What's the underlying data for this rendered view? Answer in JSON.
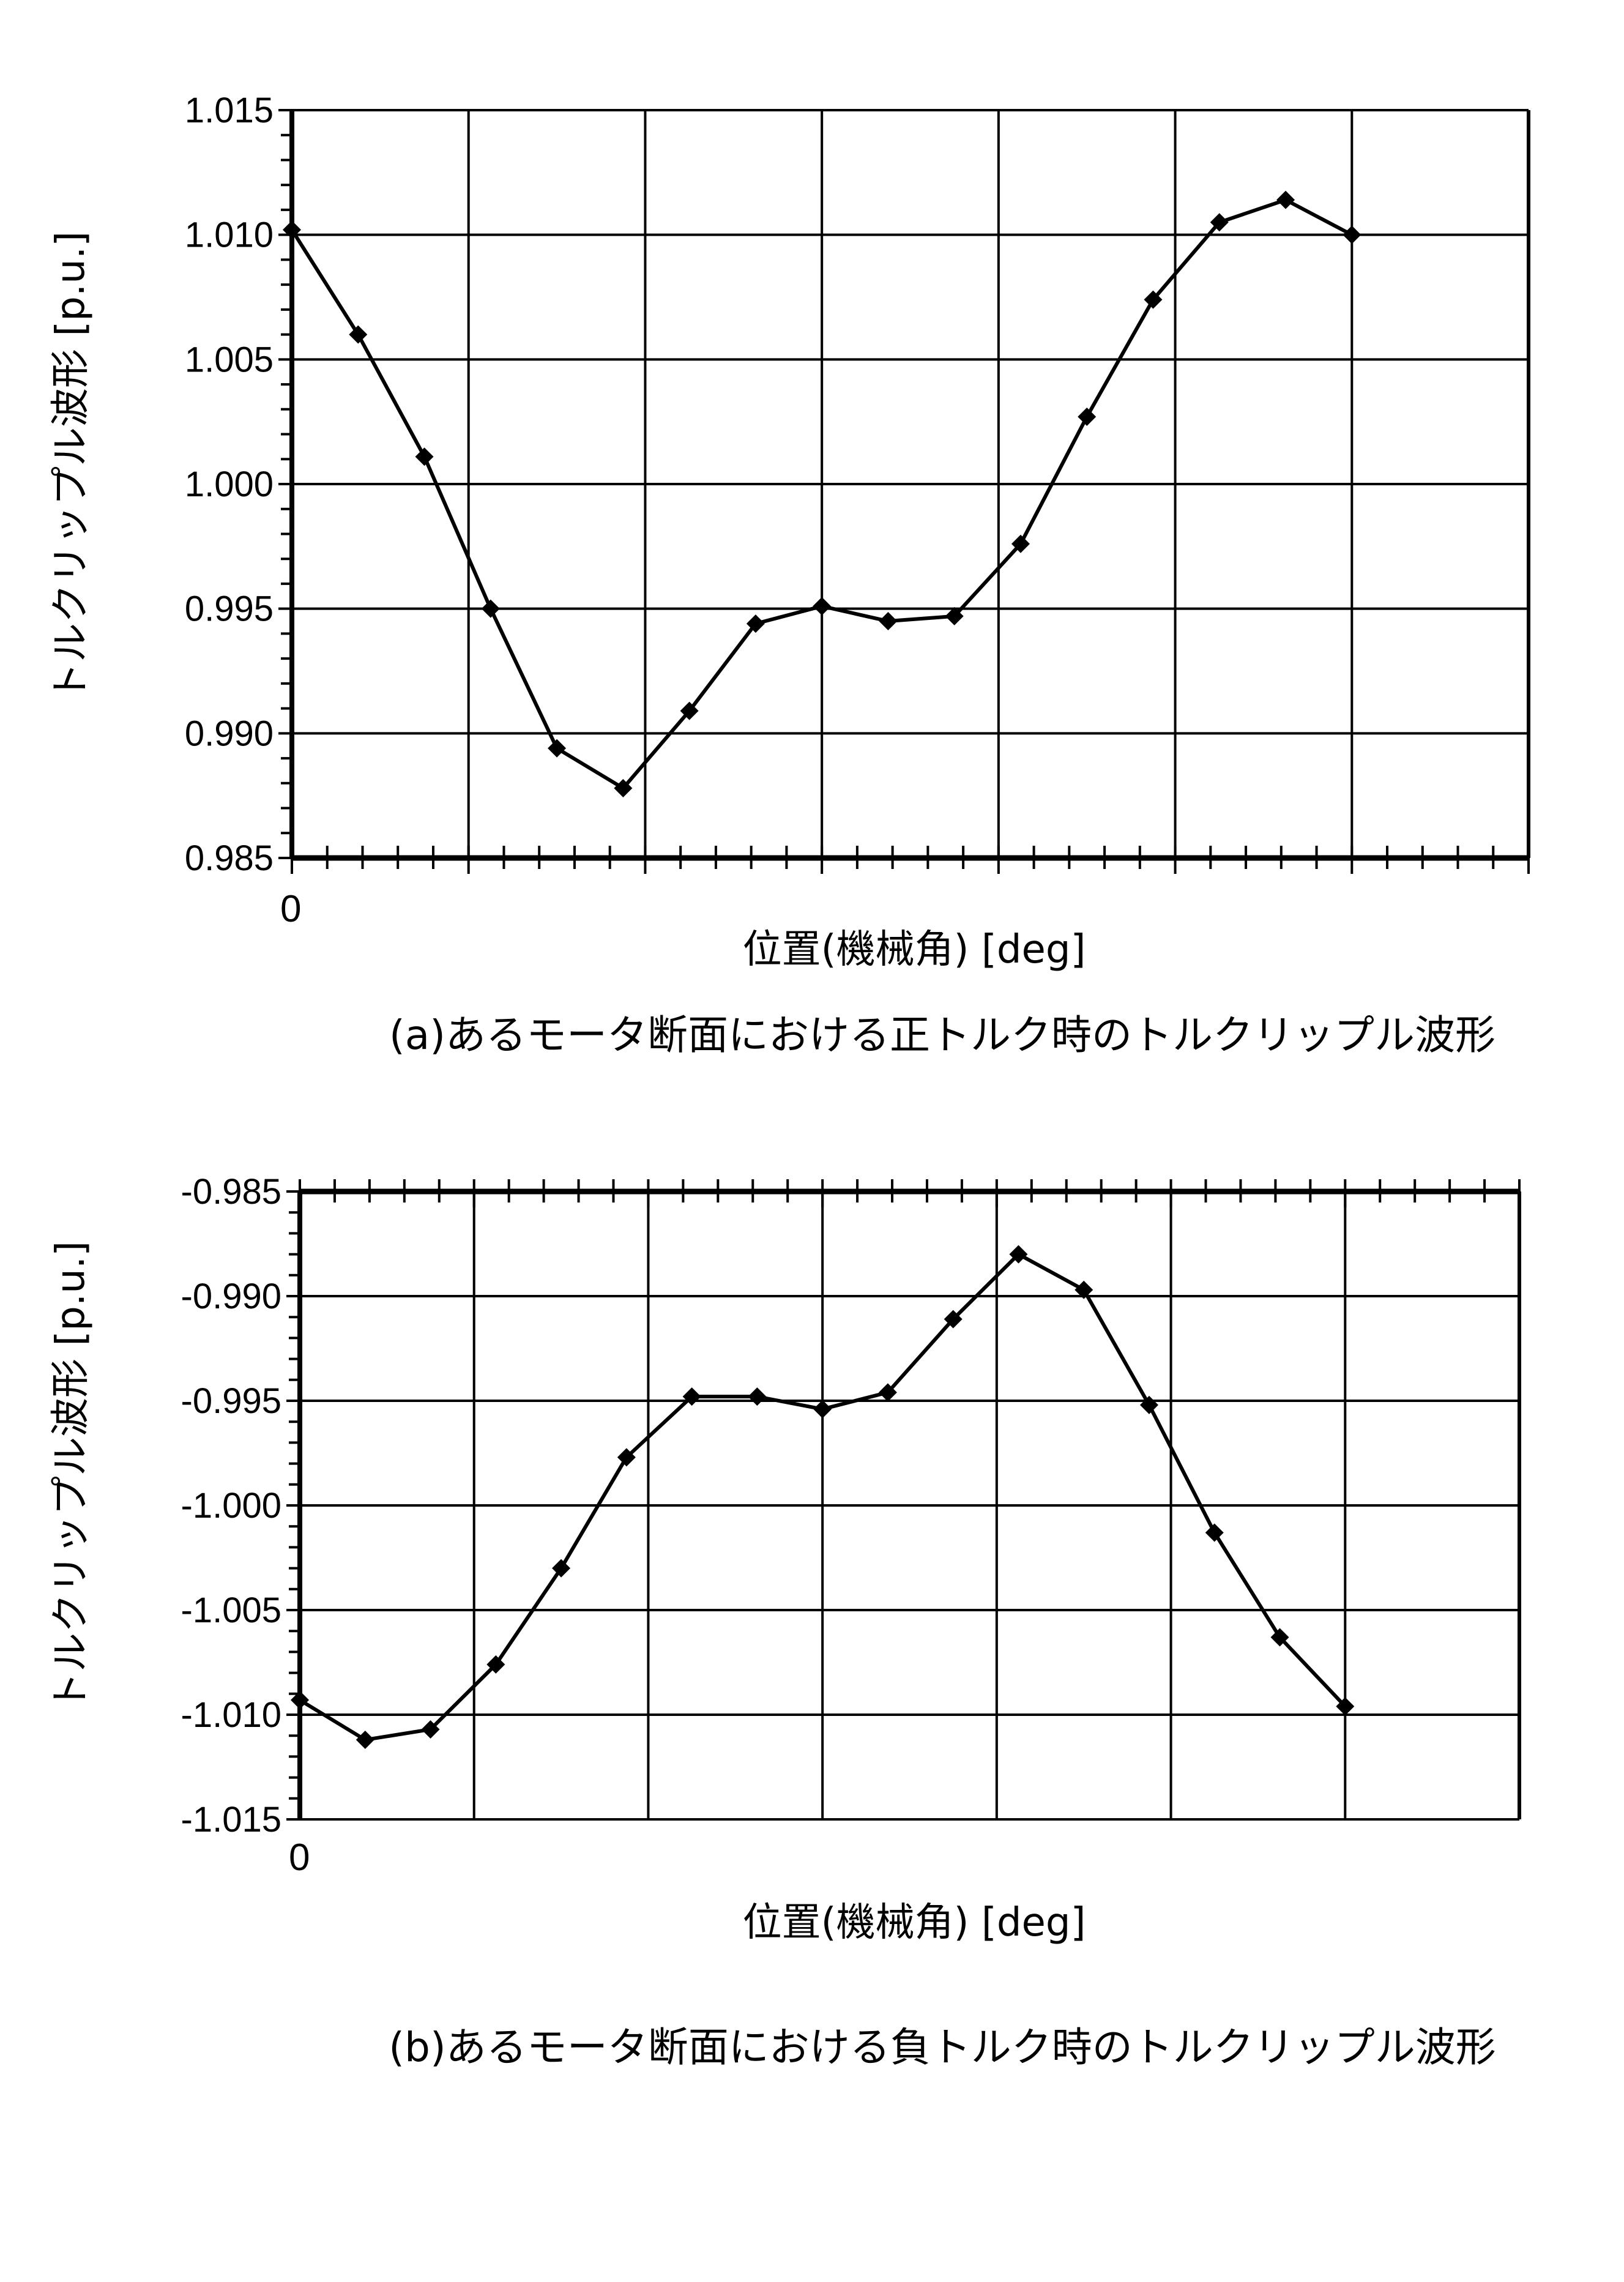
{
  "figure": {
    "panel_a": {
      "y_axis_label": "トルクリップル波形 [p.u.]",
      "x_axis_label": "位置(機械角) [deg]",
      "x_origin_label": "0",
      "caption": "(a)あるモータ断面における正トルク時のトルクリップル波形"
    },
    "panel_b": {
      "y_axis_label": "トルクリップル波形 [p.u.]",
      "x_axis_label": "位置(機械角) [deg]",
      "x_origin_label": "0",
      "caption": "(b)あるモータ断面における負トルク時のトルクリップル波形"
    }
  },
  "chart_data": [
    {
      "type": "line",
      "title": "(a)あるモータ断面における正トルク時のトルクリップル波形",
      "xlabel": "位置(機械角) [deg]",
      "ylabel": "トルクリップル波形 [p.u.]",
      "x_tick_labels": [
        "0"
      ],
      "x_major_divisions": 7,
      "x_minor_per_major": 5,
      "x": [
        0,
        0.375,
        0.75,
        1.125,
        1.5,
        1.875,
        2.25,
        2.625,
        3.0,
        3.375,
        3.75,
        4.125,
        4.5,
        4.875,
        5.25,
        5.625,
        6.0
      ],
      "x_units": "major gridline divisions",
      "ylim": [
        0.985,
        1.015
      ],
      "y_ticks": [
        "1.015",
        "1.010",
        "1.005",
        "1.000",
        "0.995",
        "0.990",
        "0.985"
      ],
      "grid": true,
      "marker": "diamond",
      "series": [
        {
          "name": "正トルク",
          "values": [
            1.0102,
            1.006,
            1.0011,
            0.995,
            0.9894,
            0.9878,
            0.9909,
            0.9944,
            0.9951,
            0.9945,
            0.9947,
            0.9976,
            1.0027,
            1.0074,
            1.0105,
            1.0114,
            1.01
          ]
        }
      ]
    },
    {
      "type": "line",
      "title": "(b)あるモータ断面における負トルク時のトルクリップル波形",
      "xlabel": "位置(機械角) [deg]",
      "ylabel": "トルクリップル波形 [p.u.]",
      "x_tick_labels": [
        "0"
      ],
      "x_major_divisions": 7,
      "x_minor_per_major": 5,
      "x": [
        0,
        0.375,
        0.75,
        1.125,
        1.5,
        1.875,
        2.25,
        2.625,
        3.0,
        3.375,
        3.75,
        4.125,
        4.5,
        4.875,
        5.25,
        5.625,
        6.0
      ],
      "x_units": "major gridline divisions",
      "ylim": [
        -1.015,
        -0.985
      ],
      "y_ticks": [
        "-0.985",
        "-0.990",
        "-0.995",
        "-1.000",
        "-1.005",
        "-1.010",
        "-1.015"
      ],
      "grid": true,
      "marker": "diamond",
      "series": [
        {
          "name": "負トルク",
          "values": [
            -1.0093,
            -1.0112,
            -1.0107,
            -1.0076,
            -1.003,
            -0.9977,
            -0.9948,
            -0.9948,
            -0.9954,
            -0.9946,
            -0.9911,
            -0.988,
            -0.9897,
            -0.9952,
            -1.0013,
            -1.0063,
            -1.0096
          ]
        }
      ]
    }
  ]
}
